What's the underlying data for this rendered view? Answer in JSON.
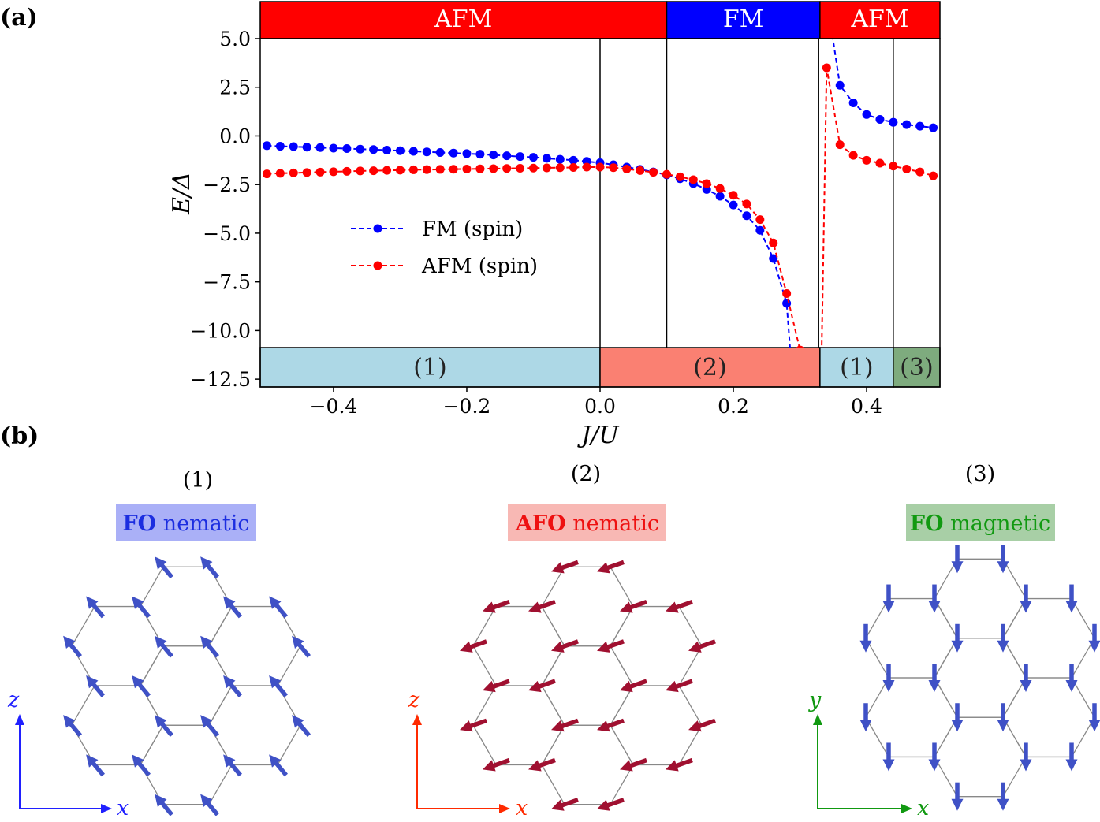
{
  "panel_a": {
    "label": "(a)"
  },
  "panel_b": {
    "label": "(b)"
  },
  "chart_data": {
    "type": "line",
    "xlabel": "J/U",
    "ylabel": "E/Δ",
    "xlim": [
      -0.51,
      0.51
    ],
    "ylim": [
      -12.9,
      5.0
    ],
    "xticks": [
      -0.4,
      -0.2,
      0.0,
      0.2,
      0.4
    ],
    "xtick_labels": [
      "−0.4",
      "−0.2",
      "0.0",
      "0.2",
      "0.4"
    ],
    "yticks": [
      5.0,
      2.5,
      0.0,
      -2.5,
      -5.0,
      -7.5,
      -10.0,
      -12.5
    ],
    "ytick_labels": [
      "5.0",
      "2.5",
      "0.0",
      "−2.5",
      "−5.0",
      "−7.5",
      "−10.0",
      "−12.5"
    ],
    "vertical_lines": [
      0.0,
      0.1,
      0.328,
      0.44
    ],
    "top_bands": [
      {
        "label": "AFM",
        "from": -0.51,
        "to": 0.1,
        "color": "#ff0000"
      },
      {
        "label": "FM",
        "from": 0.1,
        "to": 0.33,
        "color": "#0000ff"
      },
      {
        "label": "AFM",
        "from": 0.33,
        "to": 0.51,
        "color": "#ff0000"
      }
    ],
    "bottom_bands": [
      {
        "label": "(1)",
        "from": -0.51,
        "to": 0.0,
        "color": "#add8e6"
      },
      {
        "label": "(2)",
        "from": 0.0,
        "to": 0.33,
        "color": "#fa8072"
      },
      {
        "label": "(1)",
        "from": 0.33,
        "to": 0.44,
        "color": "#add8e6"
      },
      {
        "label": "(3)",
        "from": 0.44,
        "to": 0.51,
        "color": "#7eab7e"
      }
    ],
    "series": [
      {
        "name": "FM (spin)",
        "color": "#0000ff",
        "x": [
          -0.5,
          -0.48,
          -0.46,
          -0.44,
          -0.42,
          -0.4,
          -0.38,
          -0.36,
          -0.34,
          -0.32,
          -0.3,
          -0.28,
          -0.26,
          -0.24,
          -0.22,
          -0.2,
          -0.18,
          -0.16,
          -0.14,
          -0.12,
          -0.1,
          -0.08,
          -0.06,
          -0.04,
          -0.02,
          0.0,
          0.02,
          0.04,
          0.06,
          0.08,
          0.1,
          0.12,
          0.14,
          0.16,
          0.18,
          0.2,
          0.22,
          0.24,
          0.26,
          0.28
        ],
        "y": [
          -0.5,
          -0.53,
          -0.55,
          -0.58,
          -0.6,
          -0.63,
          -0.65,
          -0.68,
          -0.7,
          -0.73,
          -0.76,
          -0.79,
          -0.82,
          -0.85,
          -0.88,
          -0.91,
          -0.94,
          -0.98,
          -1.02,
          -1.06,
          -1.1,
          -1.15,
          -1.2,
          -1.25,
          -1.31,
          -1.38,
          -1.48,
          -1.6,
          -1.72,
          -1.85,
          -2.0,
          -2.2,
          -2.45,
          -2.75,
          -3.1,
          -3.55,
          -4.1,
          -4.85,
          -6.3,
          -8.6
        ],
        "x2": [
          0.36,
          0.38,
          0.4,
          0.42,
          0.44,
          0.46,
          0.48,
          0.5
        ],
        "y2": [
          2.6,
          1.7,
          1.1,
          0.85,
          0.7,
          0.58,
          0.5,
          0.42
        ]
      },
      {
        "name": "AFM (spin)",
        "color": "#ff0000",
        "x": [
          -0.5,
          -0.48,
          -0.46,
          -0.44,
          -0.42,
          -0.4,
          -0.38,
          -0.36,
          -0.34,
          -0.32,
          -0.3,
          -0.28,
          -0.26,
          -0.24,
          -0.22,
          -0.2,
          -0.18,
          -0.16,
          -0.14,
          -0.12,
          -0.1,
          -0.08,
          -0.06,
          -0.04,
          -0.02,
          0.0,
          0.02,
          0.04,
          0.06,
          0.08,
          0.1,
          0.12,
          0.14,
          0.16,
          0.18,
          0.2,
          0.22,
          0.24,
          0.26,
          0.28,
          0.3
        ],
        "y": [
          -1.95,
          -1.92,
          -1.9,
          -1.88,
          -1.86,
          -1.84,
          -1.82,
          -1.8,
          -1.79,
          -1.77,
          -1.76,
          -1.74,
          -1.73,
          -1.72,
          -1.71,
          -1.7,
          -1.69,
          -1.68,
          -1.67,
          -1.66,
          -1.65,
          -1.64,
          -1.63,
          -1.62,
          -1.6,
          -1.6,
          -1.63,
          -1.7,
          -1.78,
          -1.87,
          -1.97,
          -2.1,
          -2.25,
          -2.45,
          -2.7,
          -3.05,
          -3.5,
          -4.3,
          -5.5,
          -8.1,
          -11.0
        ],
        "x2": [
          0.34,
          0.36,
          0.38,
          0.4,
          0.42,
          0.44,
          0.46,
          0.48,
          0.5
        ],
        "y2": [
          3.5,
          -0.45,
          -1.0,
          -1.25,
          -1.4,
          -1.55,
          -1.7,
          -1.85,
          -2.05
        ]
      }
    ],
    "legend": {
      "position": "center-left",
      "entries": [
        "FM (spin)",
        "AFM (spin)"
      ]
    }
  },
  "subpanels": [
    {
      "number": "(1)",
      "badge_bold": "FO",
      "badge_rest": " nematic",
      "badge_color": "#aab0f7",
      "text_color": "#1c2ee0",
      "axis_v": "z",
      "axis_h": "x",
      "axis_color": "#2020ff",
      "arrow_color": "#3f51c6"
    },
    {
      "number": "(2)",
      "badge_bold": "AFO",
      "badge_rest": " nematic",
      "badge_color": "#f8b8b4",
      "text_color": "#ee1111",
      "axis_v": "z",
      "axis_h": "x",
      "axis_color": "#ff2a00",
      "arrow_color": "#3f51c6",
      "arrow_color_2": "#a01030"
    },
    {
      "number": "(3)",
      "badge_bold": "FO",
      "badge_rest": " magnetic",
      "badge_color": "#a8cfa6",
      "text_color": "#119911",
      "axis_v": "y",
      "axis_h": "x",
      "axis_color": "#119911",
      "arrow_color": "#3f51c6"
    }
  ]
}
